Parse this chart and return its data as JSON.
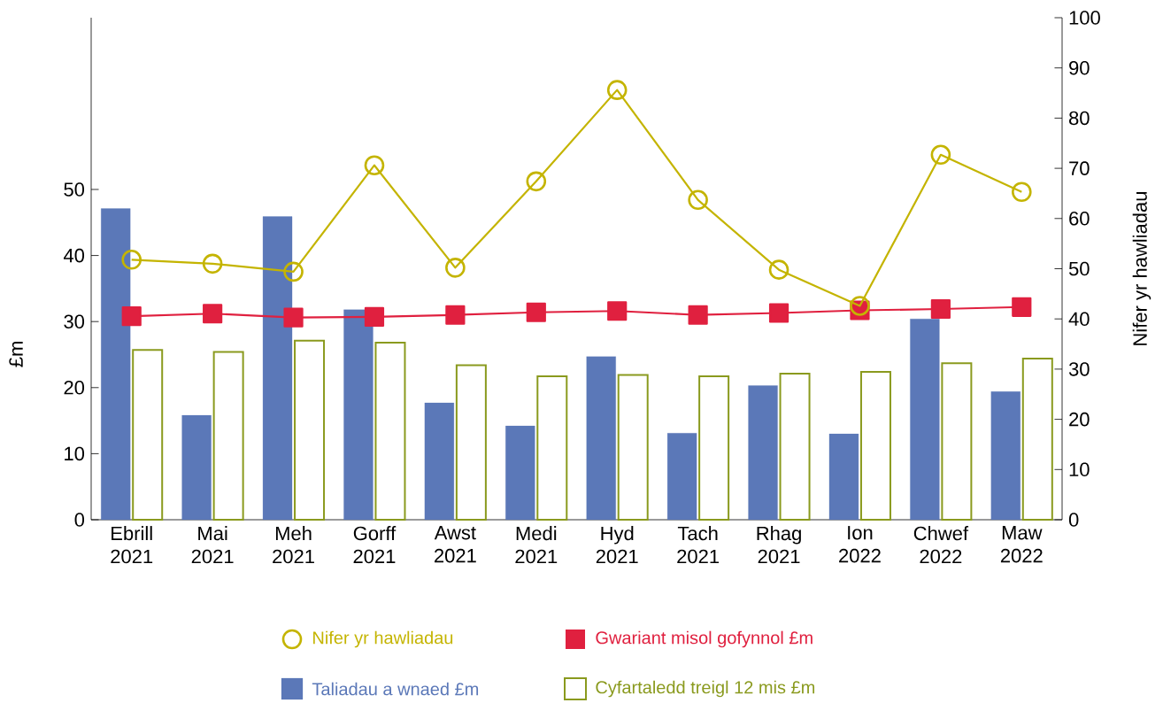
{
  "chart_data": {
    "type": "bar",
    "categories": [
      "Ebrill 2021",
      "Mai 2021",
      "Meh 2021",
      "Gorff 2021",
      "Awst 2021",
      "Medi 2021",
      "Hyd 2021",
      "Tach 2021",
      "Rhag 2021",
      "Ion 2022",
      "Chwef 2022",
      "Maw 2022"
    ],
    "series": [
      {
        "name": "Nifer yr hawliadau",
        "type": "line",
        "axis": "y2",
        "marker": "circle",
        "color": "#c4b400",
        "values": [
          51.8,
          51.0,
          49.4,
          70.6,
          50.2,
          67.4,
          85.6,
          63.7,
          49.8,
          42.6,
          72.7,
          65.3
        ]
      },
      {
        "name": "Gwariant misol gofynnol £m",
        "type": "line",
        "marker": "square",
        "color": "#e0203f",
        "values": [
          30.8,
          31.2,
          30.6,
          30.7,
          31.0,
          31.4,
          31.6,
          31.0,
          31.3,
          31.7,
          31.9,
          32.2
        ]
      },
      {
        "name": "Taliadau a wnaed £m",
        "color": "#5b78b8",
        "values": [
          47.1,
          15.8,
          45.9,
          31.8,
          17.7,
          14.2,
          24.7,
          13.1,
          20.3,
          13.0,
          30.4,
          19.4
        ]
      },
      {
        "name": "Cyfartaledd treigl 12 mis £m",
        "color": "#8a9a1e",
        "values": [
          25.7,
          25.4,
          27.1,
          26.8,
          23.4,
          21.7,
          21.9,
          21.7,
          22.1,
          22.4,
          23.7,
          24.4
        ]
      }
    ],
    "ylabel": "£m",
    "y2label": "Nifer yr hawliadau",
    "ylim": [
      0,
      76
    ],
    "yticks": [
      0,
      10,
      20,
      30,
      40,
      50
    ],
    "y2lim": [
      0,
      100
    ],
    "y2ticks": [
      0,
      10,
      20,
      30,
      40,
      50,
      60,
      70,
      80,
      90,
      100
    ],
    "legend": "bottom"
  }
}
